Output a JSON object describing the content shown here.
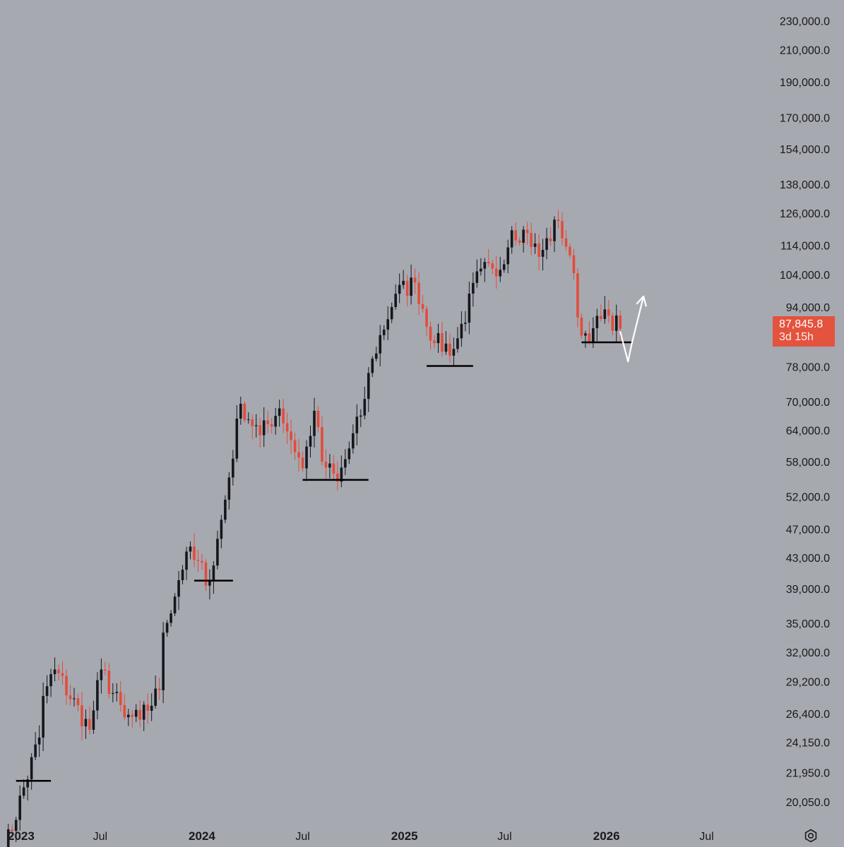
{
  "chart_data": {
    "type": "candlestick",
    "title": "",
    "interval": "weekly",
    "y_scale": "log",
    "ylim": [
      18800,
      240000
    ],
    "xlim": [
      "2023-01-01",
      "2026-09-15"
    ],
    "y_ticks": [
      "230,000.0",
      "210,000.0",
      "190,000.0",
      "170,000.0",
      "154,000.0",
      "138,000.0",
      "126,000.0",
      "114,000.0",
      "104,000.0",
      "94,000.0",
      "78,000.0",
      "70,000.0",
      "64,000.0",
      "58,000.0",
      "52,000.0",
      "47,000.0",
      "43,000.0",
      "39,000.0",
      "35,000.0",
      "32,000.0",
      "29,200.0",
      "26,400.0",
      "24,150.0",
      "21,950.0",
      "20,050.0"
    ],
    "x_ticks": [
      {
        "label": "2023",
        "date": "2023-01-01",
        "bold": true
      },
      {
        "label": "Jul",
        "date": "2023-07-01",
        "bold": false
      },
      {
        "label": "2024",
        "date": "2024-01-01",
        "bold": true
      },
      {
        "label": "Jul",
        "date": "2024-07-01",
        "bold": false
      },
      {
        "label": "2025",
        "date": "2025-01-01",
        "bold": true
      },
      {
        "label": "Jul",
        "date": "2025-07-01",
        "bold": false
      },
      {
        "label": "2026",
        "date": "2026-01-01",
        "bold": true
      },
      {
        "label": "Jul",
        "date": "2026-07-01",
        "bold": false
      }
    ],
    "anchors": [
      {
        "date": "2023-01-02",
        "price": 16500
      },
      {
        "date": "2023-03-13",
        "price": 24500
      },
      {
        "date": "2023-03-20",
        "price": 27900
      },
      {
        "date": "2023-04-10",
        "price": 30300
      },
      {
        "date": "2023-06-12",
        "price": 25100
      },
      {
        "date": "2023-07-03",
        "price": 30300
      },
      {
        "date": "2023-08-14",
        "price": 26100
      },
      {
        "date": "2023-09-11",
        "price": 25900
      },
      {
        "date": "2023-10-16",
        "price": 28400
      },
      {
        "date": "2023-10-23",
        "price": 34000
      },
      {
        "date": "2023-12-04",
        "price": 43800
      },
      {
        "date": "2024-01-15",
        "price": 40000
      },
      {
        "date": "2024-02-12",
        "price": 51500
      },
      {
        "date": "2024-03-11",
        "price": 69500
      },
      {
        "date": "2024-04-15",
        "price": 63000
      },
      {
        "date": "2024-05-20",
        "price": 68500
      },
      {
        "date": "2024-07-01",
        "price": 56800
      },
      {
        "date": "2024-07-22",
        "price": 68000
      },
      {
        "date": "2024-08-05",
        "price": 58000
      },
      {
        "date": "2024-09-02",
        "price": 54500
      },
      {
        "date": "2024-10-14",
        "price": 67000
      },
      {
        "date": "2024-11-04",
        "price": 80000
      },
      {
        "date": "2024-12-16",
        "price": 98000
      },
      {
        "date": "2025-01-20",
        "price": 101500
      },
      {
        "date": "2025-02-24",
        "price": 84000
      },
      {
        "date": "2025-03-31",
        "price": 82500
      },
      {
        "date": "2025-05-19",
        "price": 106000
      },
      {
        "date": "2025-06-16",
        "price": 103500
      },
      {
        "date": "2025-07-14",
        "price": 119500
      },
      {
        "date": "2025-08-11",
        "price": 118500
      },
      {
        "date": "2025-09-01",
        "price": 110000
      },
      {
        "date": "2025-10-06",
        "price": 123000
      },
      {
        "date": "2025-10-27",
        "price": 110500
      },
      {
        "date": "2025-11-17",
        "price": 86000
      },
      {
        "date": "2025-12-08",
        "price": 88000
      },
      {
        "date": "2026-01-05",
        "price": 91500
      },
      {
        "date": "2026-01-26",
        "price": 87845.8
      }
    ],
    "support_levels": [
      {
        "price": 21400,
        "from": "2023-01-30",
        "to": "2023-04-03"
      },
      {
        "price": 40000,
        "from": "2023-12-18",
        "to": "2024-02-26"
      },
      {
        "price": 54800,
        "from": "2024-07-01",
        "to": "2024-10-28"
      },
      {
        "price": 78200,
        "from": "2025-02-10",
        "to": "2025-05-05"
      },
      {
        "price": 84200,
        "from": "2025-11-17",
        "to": "2026-02-16"
      }
    ],
    "projection_path": [
      {
        "date": "2026-01-26",
        "price": 87000
      },
      {
        "date": "2026-02-09",
        "price": 79300
      },
      {
        "date": "2026-02-16",
        "price": 84000
      },
      {
        "date": "2026-03-09",
        "price": 97200
      }
    ],
    "current_price": {
      "value": "87,845.8",
      "countdown": "3d 15h"
    },
    "colors": {
      "background": "#a7a9b1",
      "up_candle": "#16171d",
      "down_candle": "#e34c3a",
      "support_line": "#000000",
      "projection": "#ffffff",
      "axis_text": "#1a1a1a",
      "price_label": "#e3533d"
    }
  },
  "ui": {
    "settings_icon": "settings-gear-icon"
  }
}
